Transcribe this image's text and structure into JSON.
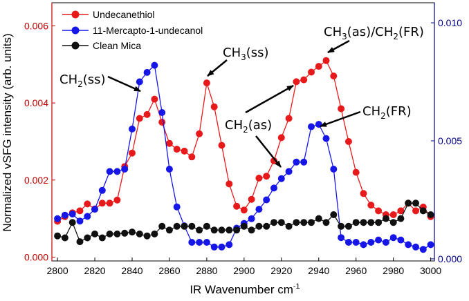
{
  "chart_data": {
    "type": "line",
    "xlabel": "IR Wavenumber cm",
    "xlabel_sup": "-1",
    "ylabel": "Normalized vSFG intensity (arb. units)",
    "xlim": [
      2797,
      3002
    ],
    "ylim": [
      -0.0001,
      0.0066
    ],
    "ylim_right": [
      -9e-05,
      0.01085
    ],
    "x_ticks": [
      2800,
      2820,
      2840,
      2860,
      2880,
      2900,
      2920,
      2940,
      2960,
      2980,
      3000
    ],
    "x_tick_labels": [
      "2800",
      "2820",
      "2840",
      "2860",
      "2880",
      "2900",
      "2920",
      "2940",
      "2960",
      "2980",
      "3000"
    ],
    "y_ticks": [
      0,
      0.002,
      0.004,
      0.006
    ],
    "y_tick_labels": [
      "0.000",
      "0.002",
      "0.004",
      "0.006"
    ],
    "y_right_ticks": [
      0,
      0.005,
      0.01
    ],
    "y_right_tick_labels": [
      "0.000",
      "0.005",
      "0.010"
    ],
    "left_axis_color": "#c00000",
    "right_axis_color": "#00008b",
    "legend_position": "top-left",
    "series": [
      {
        "name": "Undecanethiol",
        "color": "#e8191b",
        "axis": "left",
        "x": [
          2800,
          2804,
          2808,
          2812,
          2816,
          2820,
          2824,
          2828,
          2832,
          2836,
          2840,
          2844,
          2848,
          2852,
          2856,
          2860,
          2864,
          2868,
          2872,
          2876,
          2880,
          2884,
          2888,
          2892,
          2896,
          2900,
          2904,
          2908,
          2912,
          2916,
          2920,
          2924,
          2928,
          2932,
          2936,
          2940,
          2944,
          2948,
          2952,
          2956,
          2960,
          2964,
          2968,
          2972,
          2976,
          2980,
          2984,
          2988,
          2992,
          2996,
          3000
        ],
        "y": [
          0.00093,
          0.00105,
          0.00115,
          0.0012,
          0.00138,
          0.00125,
          0.0014,
          0.0014,
          0.00148,
          0.00235,
          0.0027,
          0.0036,
          0.0037,
          0.0041,
          0.0035,
          0.00295,
          0.0028,
          0.00275,
          0.0026,
          0.0032,
          0.00452,
          0.0039,
          0.0029,
          0.0019,
          0.00132,
          0.00122,
          0.0015,
          0.00205,
          0.0021,
          0.0025,
          0.0031,
          0.0036,
          0.00455,
          0.0046,
          0.0048,
          0.00495,
          0.0051,
          0.0047,
          0.00385,
          0.003,
          0.0022,
          0.00165,
          0.00135,
          0.0012,
          0.0011,
          0.0011,
          0.0012,
          0.0014,
          0.0012,
          0.0013,
          0.00105
        ]
      },
      {
        "name": "11-Mercapto-1-undecanol",
        "color": "#1616e8",
        "axis": "right",
        "x": [
          2800,
          2804,
          2808,
          2812,
          2816,
          2820,
          2824,
          2828,
          2832,
          2836,
          2840,
          2844,
          2848,
          2852,
          2856,
          2860,
          2864,
          2868,
          2872,
          2876,
          2880,
          2884,
          2888,
          2892,
          2896,
          2900,
          2904,
          2908,
          2912,
          2916,
          2920,
          2924,
          2928,
          2932,
          2936,
          2940,
          2944,
          2948,
          2952,
          2956,
          2960,
          2964,
          2968,
          2972,
          2976,
          2980,
          2984,
          2988,
          2992,
          2996,
          3000
        ],
        "y": [
          0.0017,
          0.00185,
          0.0019,
          0.0016,
          0.0018,
          0.0021,
          0.0029,
          0.0037,
          0.0037,
          0.0038,
          0.0055,
          0.0075,
          0.0079,
          0.0082,
          0.0062,
          0.0038,
          0.0022,
          0.0014,
          0.0007,
          0.0007,
          0.0007,
          0.0005,
          0.0005,
          0.0006,
          0.0013,
          0.0015,
          0.0017,
          0.0021,
          0.0025,
          0.003,
          0.0034,
          0.0037,
          0.0041,
          0.0041,
          0.0056,
          0.0057,
          0.0051,
          0.0038,
          0.0009,
          0.0007,
          0.0007,
          0.0006,
          0.0007,
          0.0008,
          0.0007,
          0.0009,
          0.0008,
          0.0006,
          0.0005,
          0.0004,
          0.0006
        ]
      },
      {
        "name": "Clean Mica",
        "color": "#101010",
        "axis": "left",
        "x": [
          2800,
          2804,
          2808,
          2812,
          2816,
          2820,
          2824,
          2828,
          2832,
          2836,
          2840,
          2844,
          2848,
          2852,
          2856,
          2860,
          2864,
          2868,
          2872,
          2876,
          2880,
          2884,
          2888,
          2892,
          2896,
          2900,
          2904,
          2908,
          2912,
          2916,
          2920,
          2924,
          2928,
          2932,
          2936,
          2940,
          2944,
          2948,
          2952,
          2956,
          2960,
          2964,
          2968,
          2972,
          2976,
          2980,
          2984,
          2988,
          2992,
          2996,
          3000
        ],
        "y": [
          0.00055,
          0.0005,
          0.0009,
          0.0004,
          0.0005,
          0.0006,
          0.0005,
          0.0006,
          0.0006,
          0.00062,
          0.00065,
          0.0006,
          0.00055,
          0.0006,
          0.0008,
          0.0007,
          0.0008,
          0.0008,
          0.0008,
          0.0007,
          0.0008,
          0.0007,
          0.0007,
          0.0007,
          0.0007,
          0.0008,
          0.0007,
          0.0008,
          0.0008,
          0.0009,
          0.0009,
          0.0008,
          0.0009,
          0.0009,
          0.0009,
          0.001,
          0.0009,
          0.0011,
          0.0008,
          0.0008,
          0.0009,
          0.0009,
          0.0009,
          0.0009,
          0.001,
          0.0009,
          0.001,
          0.0014,
          0.0014,
          0.0012,
          0.0011
        ]
      }
    ],
    "annotations": [
      {
        "main": "CH",
        "sub": "2",
        "rest": "(ss)"
      },
      {
        "main": "CH",
        "sub": "3",
        "rest": "(ss)"
      },
      {
        "main": "CH",
        "sub": "2",
        "rest": "(as)"
      },
      {
        "main": "CH",
        "sub": "3",
        "rest": "(as)/CH",
        "sub2": "2",
        "rest2": "(FR)"
      },
      {
        "main": "CH",
        "sub": "2",
        "rest": "(FR)"
      }
    ]
  }
}
